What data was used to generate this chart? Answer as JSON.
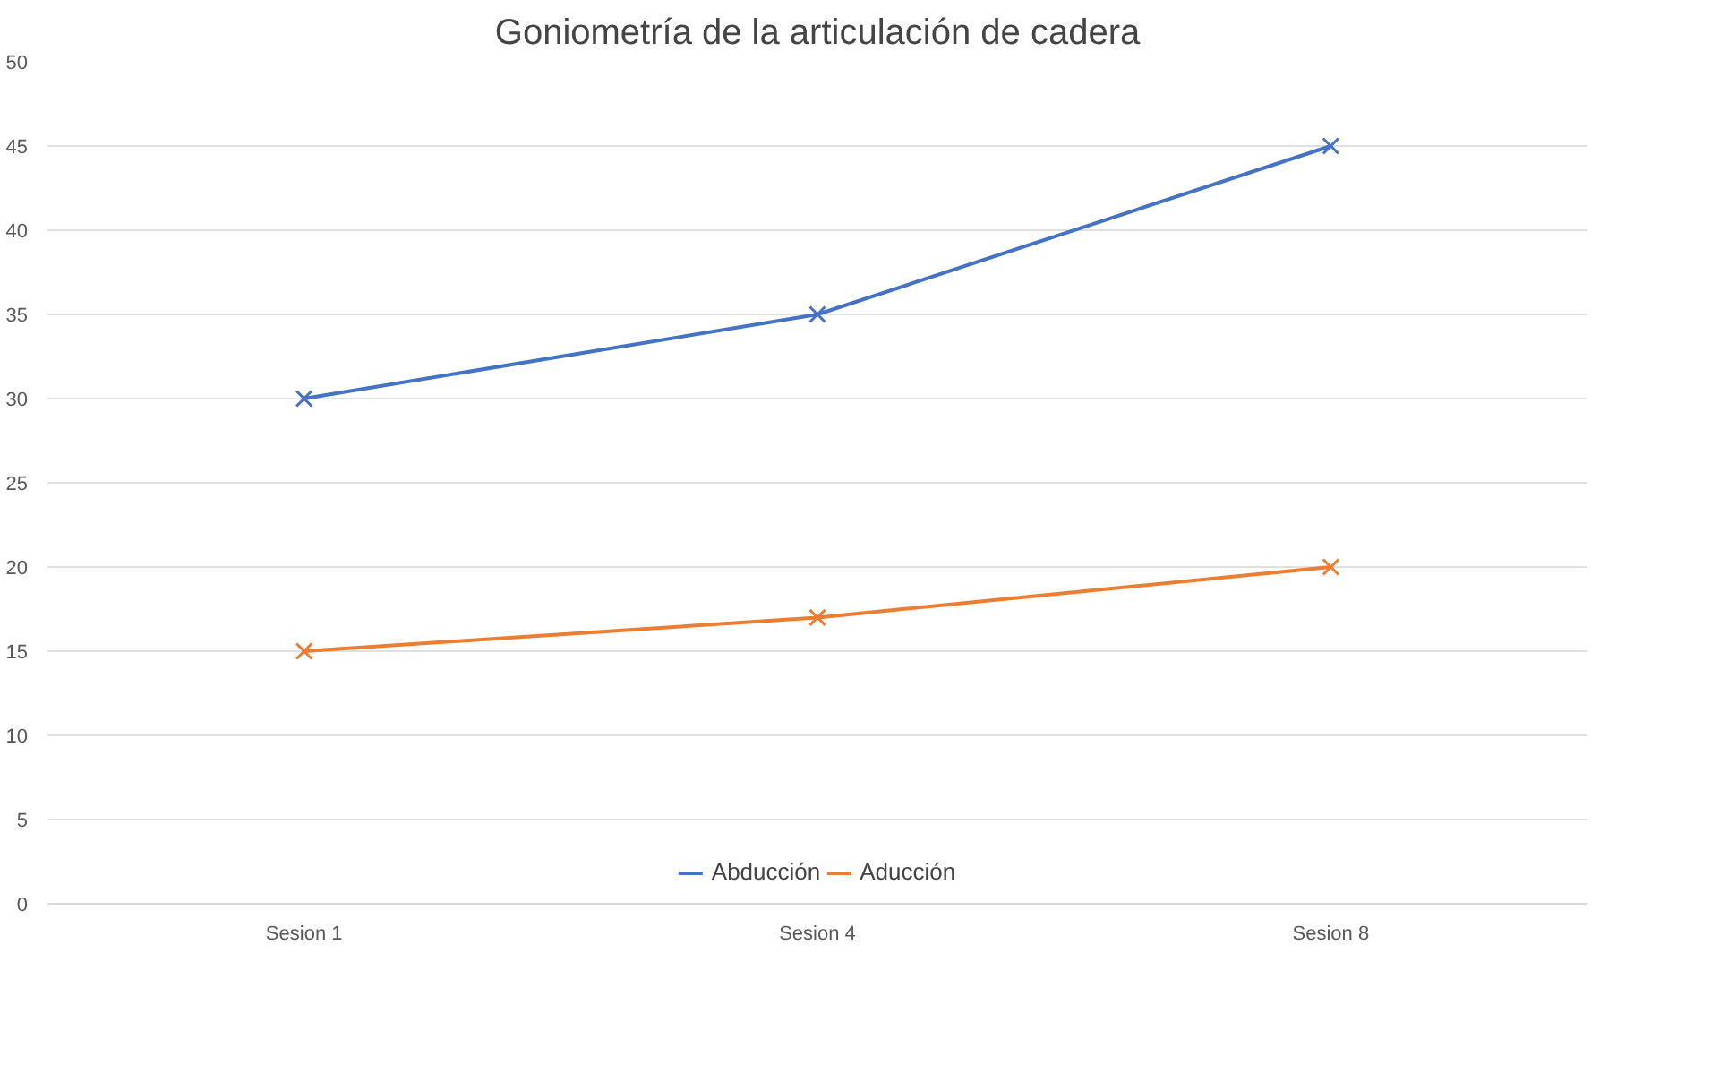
{
  "chart_data": {
    "type": "line",
    "title": "Goniometría de la articulación de cadera",
    "categories": [
      "Sesion 1",
      "Sesion 4",
      "Sesion 8"
    ],
    "series": [
      {
        "name": "Abducción",
        "color": "#4472c4",
        "values": [
          30,
          35,
          45
        ]
      },
      {
        "name": "Aducción",
        "color": "#ed7d31",
        "values": [
          15,
          17,
          20
        ]
      }
    ],
    "ylim": [
      0,
      50
    ],
    "yticks": [
      0,
      5,
      10,
      15,
      20,
      25,
      30,
      35,
      40,
      45,
      50
    ],
    "grid": "y",
    "legend": "bottom",
    "marker": "cross"
  }
}
